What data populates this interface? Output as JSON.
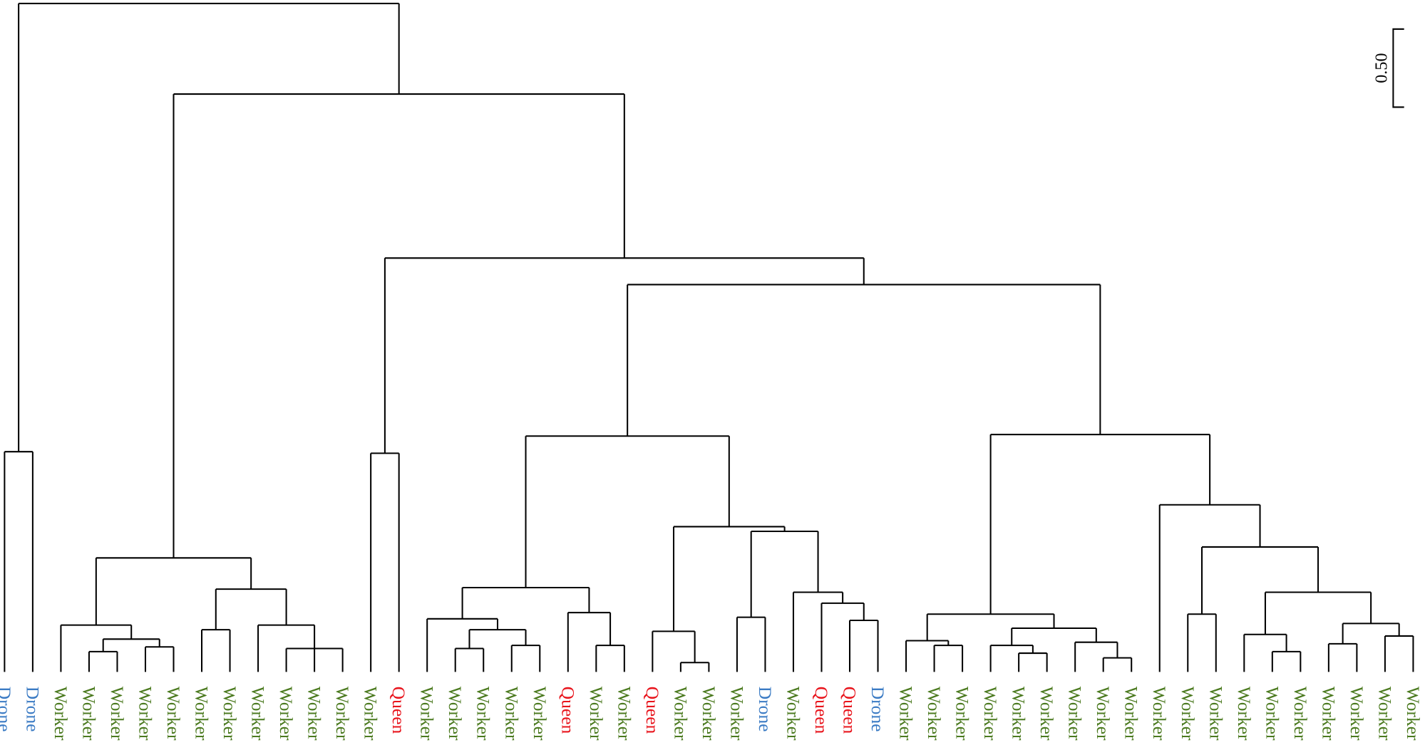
{
  "colors": {
    "Drone": "#3b7bc4",
    "Worker": "#4b7a1f",
    "Queen": "#e8141c"
  },
  "scale_bar": {
    "label": "0.50",
    "value": 0.5
  },
  "leaves": [
    "Drone",
    "Drone",
    "Worker",
    "Worker",
    "Worker",
    "Worker",
    "Worker",
    "Worker",
    "Worker",
    "Worker",
    "Worker",
    "Worker",
    "Worker",
    "Worker",
    "Queen",
    "Worker",
    "Worker",
    "Worker",
    "Worker",
    "Worker",
    "Queen",
    "Worker",
    "Worker",
    "Queen",
    "Worker",
    "Worker",
    "Worker",
    "Drone",
    "Worker",
    "Queen",
    "Queen",
    "Drone",
    "Worker",
    "Worker",
    "Worker",
    "Worker",
    "Worker",
    "Worker",
    "Worker",
    "Worker",
    "Worker",
    "Worker",
    "Worker",
    "Worker",
    "Worker",
    "Worker",
    "Worker",
    "Worker",
    "Worker",
    "Worker",
    "Worker"
  ],
  "tree": {
    "h": 4.28,
    "c": [
      {
        "h": 1.41,
        "c": [
          0,
          1
        ]
      },
      {
        "h": 3.7,
        "c": [
          {
            "h": 0.73,
            "c": [
              {
                "h": 0.3,
                "c": [
                  2,
                  {
                    "h": 0.21,
                    "c": [
                      {
                        "h": 0.13,
                        "c": [
                          3,
                          4
                        ]
                      },
                      {
                        "h": 0.16,
                        "c": [
                          5,
                          6
                        ]
                      }
                    ]
                  }
                ]
              },
              {
                "h": 0.53,
                "c": [
                  {
                    "h": 0.27,
                    "c": [
                      7,
                      8
                    ]
                  },
                  {
                    "h": 0.3,
                    "c": [
                      9,
                      {
                        "h": 0.15,
                        "c": [
                          10,
                          11,
                          12
                        ]
                      }
                    ]
                  }
                ]
              }
            ]
          },
          {
            "h": 2.65,
            "c": [
              {
                "h": 1.4,
                "c": [
                  13,
                  14
                ]
              },
              {
                "h": 2.48,
                "c": [
                  {
                    "h": 1.51,
                    "c": [
                      {
                        "h": 0.54,
                        "c": [
                          {
                            "h": 0.34,
                            "c": [
                              15,
                              {
                                "h": 0.27,
                                "c": [
                                  {
                                    "h": 0.15,
                                    "c": [
                                      16,
                                      17
                                    ]
                                  },
                                  {
                                    "h": 0.17,
                                    "c": [
                                      18,
                                      19
                                    ]
                                  }
                                ]
                              }
                            ]
                          },
                          {
                            "h": 0.38,
                            "c": [
                              20,
                              {
                                "h": 0.17,
                                "c": [
                                  21,
                                  22
                                ]
                              }
                            ]
                          }
                        ]
                      },
                      {
                        "h": 0.93,
                        "c": [
                          {
                            "h": 0.26,
                            "c": [
                              23,
                              {
                                "h": 0.06,
                                "c": [
                                  24,
                                  25
                                ]
                              }
                            ]
                          },
                          {
                            "h": 0.9,
                            "c": [
                              {
                                "h": 0.35,
                                "c": [
                                  26,
                                  27
                                ]
                              },
                              {
                                "h": 0.51,
                                "c": [
                                  28,
                                  {
                                    "h": 0.44,
                                    "c": [
                                      29,
                                      {
                                        "h": 0.33,
                                        "c": [
                                          30,
                                          31
                                        ]
                                      }
                                    ]
                                  }
                                ]
                              }
                            ]
                          }
                        ]
                      }
                    ]
                  },
                  {
                    "h": 1.52,
                    "c": [
                      {
                        "h": 0.37,
                        "c": [
                          {
                            "h": 0.2,
                            "c": [
                              32,
                              {
                                "h": 0.17,
                                "c": [
                                  33,
                                  34
                                ]
                              }
                            ]
                          },
                          {
                            "h": 0.28,
                            "c": [
                              {
                                "h": 0.17,
                                "c": [
                                  35,
                                  {
                                    "h": 0.12,
                                    "c": [
                                      36,
                                      37
                                    ]
                                  }
                                ]
                              },
                              {
                                "h": 0.19,
                                "c": [
                                  38,
                                  {
                                    "h": 0.09,
                                    "c": [
                                      39,
                                      40
                                    ]
                                  }
                                ]
                              }
                            ]
                          }
                        ]
                      },
                      {
                        "h": 1.07,
                        "c": [
                          41,
                          {
                            "h": 0.8,
                            "c": [
                              {
                                "h": 0.37,
                                "c": [
                                  42,
                                  43
                                ]
                              },
                              {
                                "h": 0.51,
                                "c": [
                                  {
                                    "h": 0.24,
                                    "c": [
                                      44,
                                      {
                                        "h": 0.13,
                                        "c": [
                                          45,
                                          46
                                        ]
                                      }
                                    ]
                                  },
                                  {
                                    "h": 0.31,
                                    "c": [
                                      {
                                        "h": 0.18,
                                        "c": [
                                          47,
                                          48
                                        ]
                                      },
                                      {
                                        "h": 0.23,
                                        "c": [
                                          49,
                                          50
                                        ]
                                      }
                                    ]
                                  }
                                ]
                              }
                            ]
                          }
                        ]
                      }
                    ]
                  }
                ]
              }
            ]
          }
        ]
      }
    ]
  }
}
